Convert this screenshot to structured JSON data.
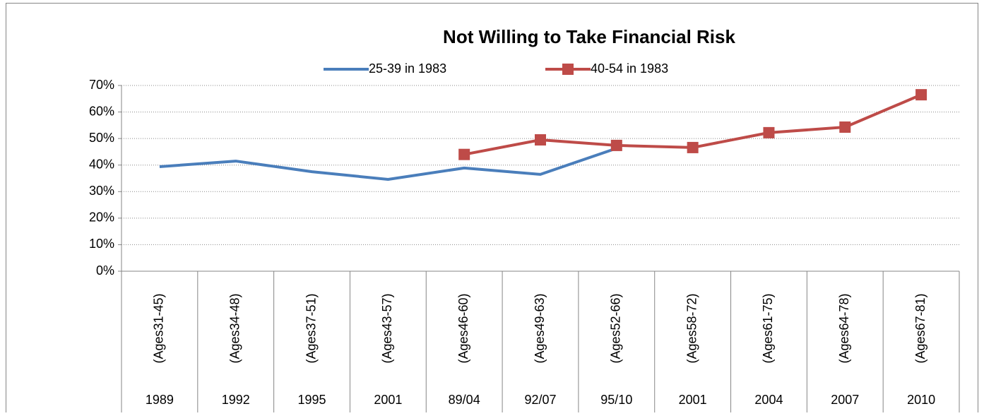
{
  "chart_data": {
    "type": "line",
    "title": "Not Willing to Take Financial Risk",
    "categories": [
      "1989",
      "1992",
      "1995",
      "2001",
      "89/04",
      "92/07",
      "95/10",
      "2001",
      "2004",
      "2007",
      "2010"
    ],
    "age_groups": [
      "(Ages31-45)",
      "(Ages34-48)",
      "(Ages37-51)",
      "(Ages43-57)",
      "(Ages46-60)",
      "(Ages49-63)",
      "(Ages52-66)",
      "(Ages58-72)",
      "(Ages61-75)",
      "(Ages64-78)",
      "(Ages67-81)"
    ],
    "series": [
      {
        "name": "25-39 in 1983",
        "color": "#4a7ebb",
        "marker": "none",
        "values": [
          39.4,
          41.5,
          37.5,
          34.6,
          38.9,
          36.5,
          46.3,
          null,
          null,
          null,
          null
        ]
      },
      {
        "name": "40-54 in 1983",
        "color": "#be4b48",
        "marker": "square",
        "values": [
          null,
          null,
          null,
          null,
          44,
          49.5,
          47.4,
          46.6,
          52.2,
          54.3,
          66.5
        ]
      }
    ],
    "ylim": [
      0,
      70
    ],
    "yticks": [
      {
        "value": 0,
        "label": "0%"
      },
      {
        "value": 10,
        "label": "10%"
      },
      {
        "value": 20,
        "label": "20%"
      },
      {
        "value": 30,
        "label": "30%"
      },
      {
        "value": 40,
        "label": "40%"
      },
      {
        "value": 50,
        "label": "50%"
      },
      {
        "value": 60,
        "label": "60%"
      },
      {
        "value": 70,
        "label": "70%"
      }
    ],
    "grid": true
  }
}
